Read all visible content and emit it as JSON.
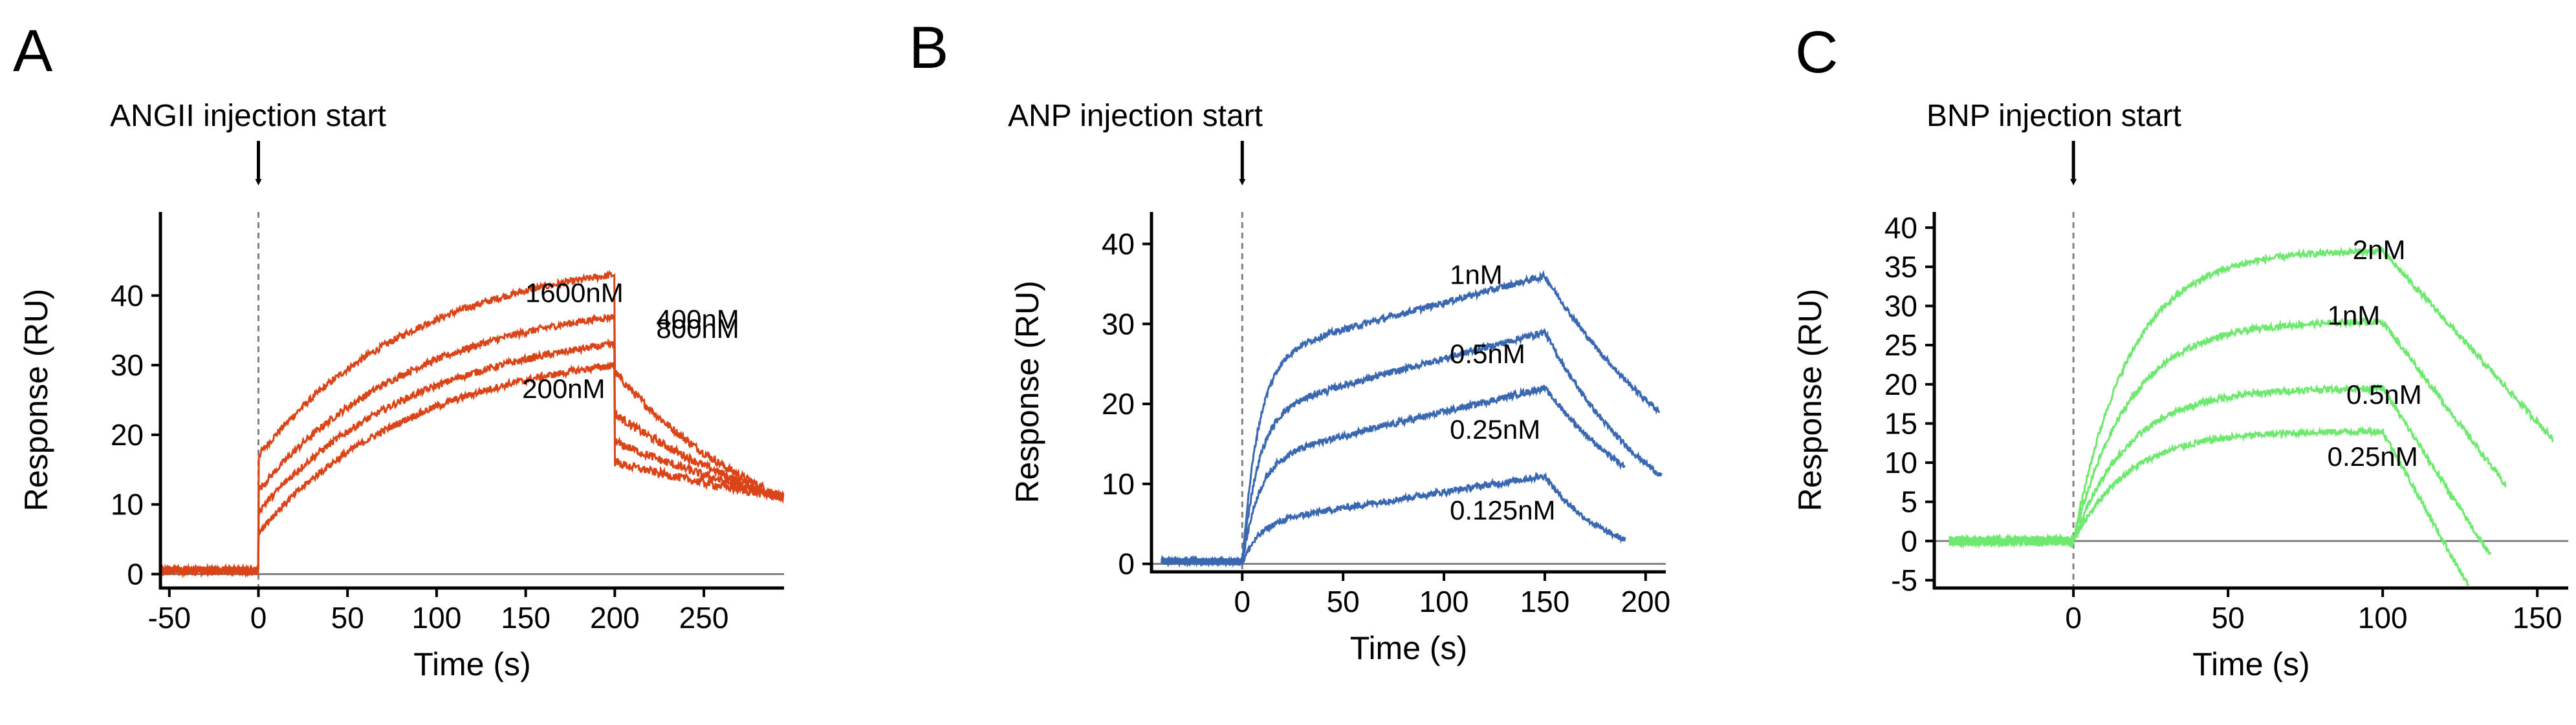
{
  "chart_data": [
    {
      "panel": "A",
      "type": "line",
      "injection_label": "ANGII injection start",
      "xlabel": "Time (s)",
      "ylabel": "Response (RU)",
      "xlim": [
        -55,
        295
      ],
      "ylim": [
        -2,
        52
      ],
      "xticks": [
        -50,
        0,
        50,
        100,
        150,
        200,
        250
      ],
      "yticks": [
        0,
        10,
        20,
        30,
        40
      ],
      "injection_x": 0,
      "color": "#d94418",
      "profile": {
        "t_end": 200,
        "t_max": 295,
        "t_start": -55,
        "pre_level": 0.5,
        "tau_assoc": 90,
        "dissoc_rate": 0.006
      },
      "series": [
        {
          "name": "1600nM",
          "jump": 17,
          "plateau": 43,
          "tail": 11
        },
        {
          "name": "800nM",
          "jump": 12,
          "plateau": 37,
          "tail": 11
        },
        {
          "name": "400nM",
          "jump": 9,
          "plateau": 33,
          "tail": 11
        },
        {
          "name": "200nM",
          "jump": 6,
          "plateau": 30,
          "tail": 11
        }
      ]
    },
    {
      "panel": "B",
      "type": "line",
      "injection_label": "ANP injection start",
      "xlabel": "Time (s)",
      "ylabel": "Response (RU)",
      "xlim": [
        -45,
        210
      ],
      "ylim": [
        -1,
        44
      ],
      "xticks": [
        0,
        50,
        100,
        150,
        200
      ],
      "yticks": [
        0,
        10,
        20,
        30,
        40
      ],
      "injection_x": 0,
      "color": "#3a68b0",
      "profile": {
        "t_end": 150,
        "t_start": -40,
        "pre_level": 0.3,
        "tau_assoc": 8,
        "dissoc_rate": 0.02
      },
      "series": [
        {
          "name": "1nM",
          "fast": 26,
          "plateau": 36,
          "t_max": 207,
          "tail": 19
        },
        {
          "name": "0.5nM",
          "fast": 19,
          "plateau": 29,
          "t_max": 208,
          "tail": 11
        },
        {
          "name": "0.25nM",
          "fast": 13,
          "plateau": 22,
          "t_max": 190,
          "tail": 12
        },
        {
          "name": "0.125nM",
          "fast": 5,
          "plateau": 11,
          "t_max": 190,
          "tail": 3
        }
      ]
    },
    {
      "panel": "C",
      "type": "line",
      "injection_label": "BNP injection start",
      "xlabel": "Time (s)",
      "ylabel": "Response (RU)",
      "xlim": [
        -45,
        160
      ],
      "ylim": [
        -6,
        42
      ],
      "xticks": [
        0,
        50,
        100,
        150
      ],
      "yticks": [
        -5,
        0,
        5,
        10,
        15,
        20,
        25,
        30,
        35,
        40
      ],
      "injection_x": 0,
      "color": "#6fe86f",
      "profile": {
        "t_end": 100,
        "t_start": -40,
        "pre_level": 0,
        "tau_assoc": 18
      },
      "series": [
        {
          "name": "2nM",
          "plateau": 37,
          "t_max": 155,
          "tail": 13
        },
        {
          "name": "1nM",
          "plateau": 28,
          "t_max": 140,
          "tail": 7
        },
        {
          "name": "0.5nM",
          "plateau": 19.5,
          "t_max": 135,
          "tail": -2
        },
        {
          "name": "0.25nM",
          "plateau": 14,
          "t_max": 128,
          "tail": -6
        }
      ]
    }
  ]
}
